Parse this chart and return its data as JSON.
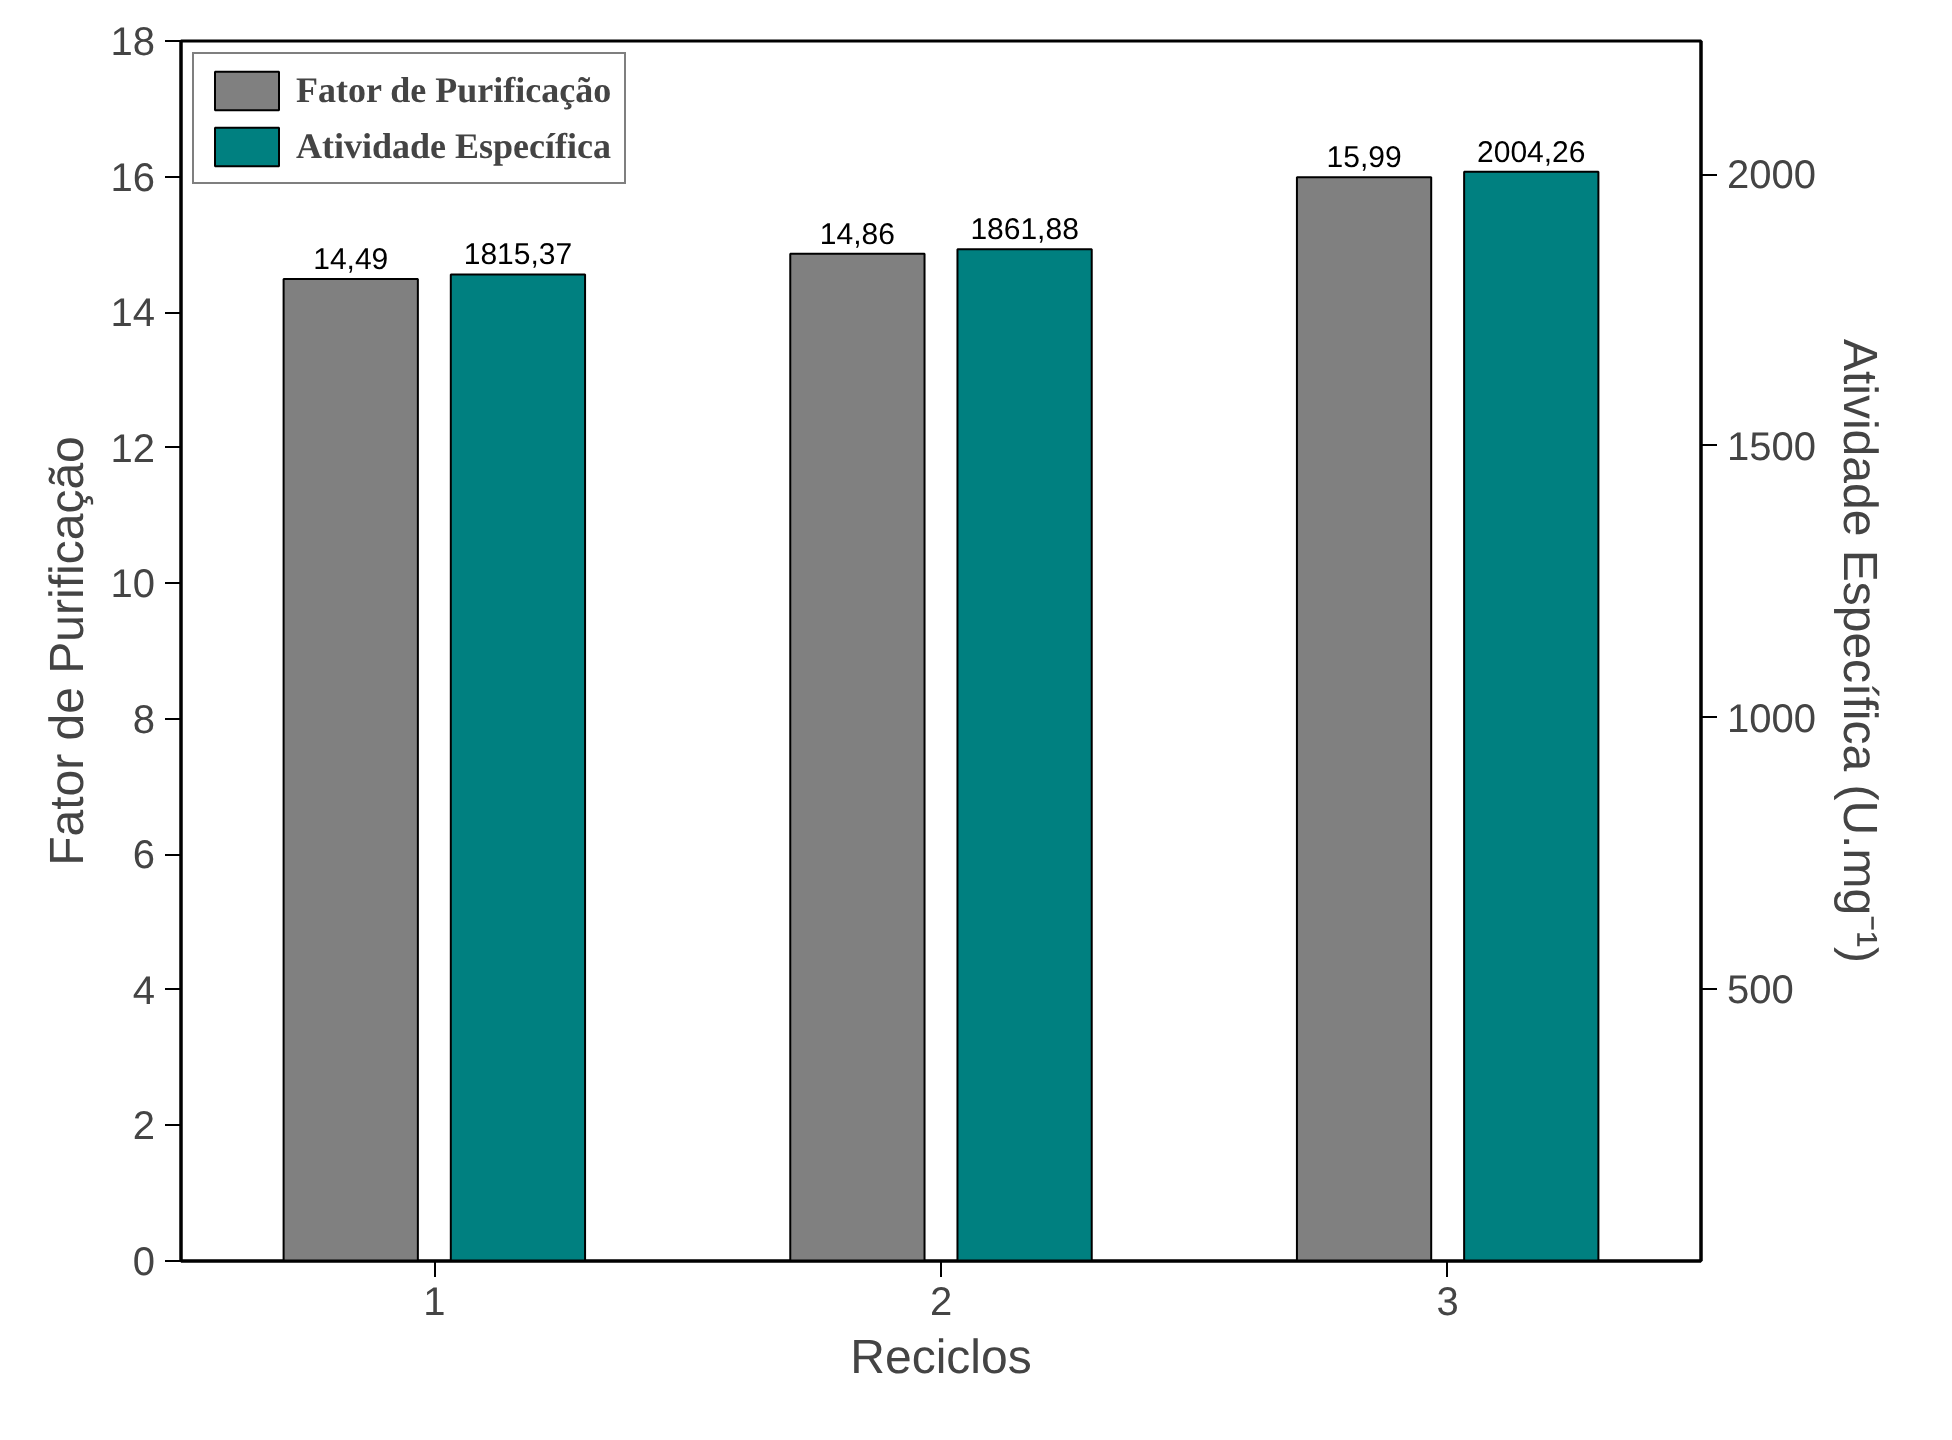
{
  "chart_data": {
    "type": "bar",
    "xlabel": "Reciclos",
    "ylabel": "Fator de Purificação",
    "y2label": "Atividade Específica (U.mg⁻¹)",
    "categories": [
      "1",
      "2",
      "3"
    ],
    "series": [
      {
        "name": "Fator de Purificação",
        "color": "#808080",
        "values": [
          14.49,
          14.86,
          15.99
        ],
        "value_labels": [
          "14,49",
          "14,86",
          "15,99"
        ]
      },
      {
        "name": "Atividade Específica",
        "color": "#008080",
        "values": [
          1815.37,
          1861.88,
          2004.26
        ],
        "value_labels": [
          "1815,37",
          "1861,88",
          "2004,26"
        ],
        "axis": "y2"
      }
    ],
    "ylim": [
      0,
      18
    ],
    "yticks": [
      0,
      2,
      4,
      6,
      8,
      10,
      12,
      14,
      16,
      18
    ],
    "y2lim": [
      0,
      2245
    ],
    "y2ticks": [
      500,
      1000,
      1500,
      2000
    ],
    "grid": false,
    "legend": "top left"
  }
}
